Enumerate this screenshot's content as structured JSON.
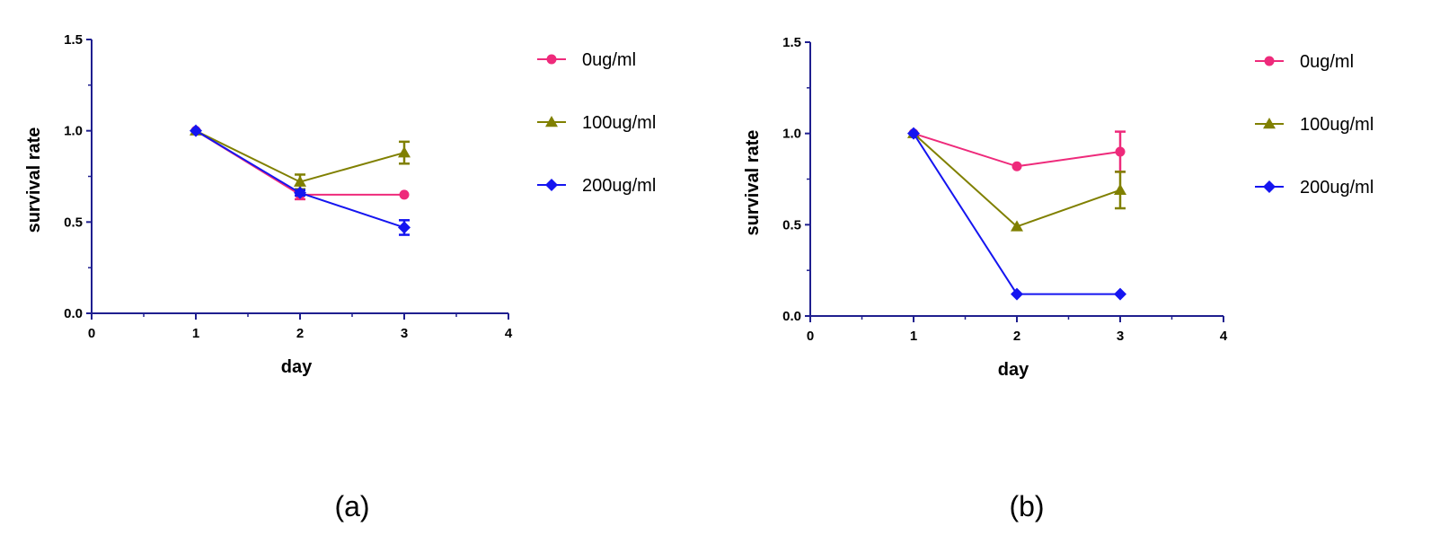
{
  "chart_data": [
    {
      "type": "line",
      "panel_label": "(a)",
      "xlabel": "day",
      "ylabel": "survival rate",
      "xlim": [
        0,
        4
      ],
      "ylim": [
        0,
        1.5
      ],
      "xticks": [
        "0",
        "1",
        "2",
        "3",
        "4"
      ],
      "yticks": [
        "0.0",
        "0.5",
        "1.0",
        "1.5"
      ],
      "grid": false,
      "legend_position": "right",
      "x": [
        1,
        2,
        3
      ],
      "series": [
        {
          "name": "0ug/ml",
          "color": "#ee2a7b",
          "marker": "circle",
          "values": [
            1.0,
            0.65,
            0.65
          ],
          "errors": [
            0,
            0.025,
            0
          ]
        },
        {
          "name": "100ug/ml",
          "color": "#808000",
          "marker": "triangle",
          "values": [
            1.0,
            0.72,
            0.88
          ],
          "errors": [
            0,
            0.04,
            0.06
          ]
        },
        {
          "name": "200ug/ml",
          "color": "#1515f0",
          "marker": "diamond",
          "values": [
            1.0,
            0.66,
            0.47
          ],
          "errors": [
            0,
            0.015,
            0.04
          ]
        }
      ]
    },
    {
      "type": "line",
      "panel_label": "(b)",
      "xlabel": "day",
      "ylabel": "survival rate",
      "xlim": [
        0,
        4
      ],
      "ylim": [
        0,
        1.5
      ],
      "xticks": [
        "0",
        "1",
        "2",
        "3",
        "4"
      ],
      "yticks": [
        "0.0",
        "0.5",
        "1.0",
        "1.5"
      ],
      "grid": false,
      "legend_position": "right",
      "x": [
        1,
        2,
        3
      ],
      "series": [
        {
          "name": "0ug/ml",
          "color": "#ee2a7b",
          "marker": "circle",
          "values": [
            1.0,
            0.82,
            0.9
          ],
          "errors": [
            0,
            0,
            0.11
          ]
        },
        {
          "name": "100ug/ml",
          "color": "#808000",
          "marker": "triangle",
          "values": [
            1.0,
            0.49,
            0.69
          ],
          "errors": [
            0,
            0,
            0.1
          ]
        },
        {
          "name": "200ug/ml",
          "color": "#1515f0",
          "marker": "diamond",
          "values": [
            1.0,
            0.12,
            0.12
          ],
          "errors": [
            0,
            0,
            0
          ]
        }
      ]
    }
  ]
}
